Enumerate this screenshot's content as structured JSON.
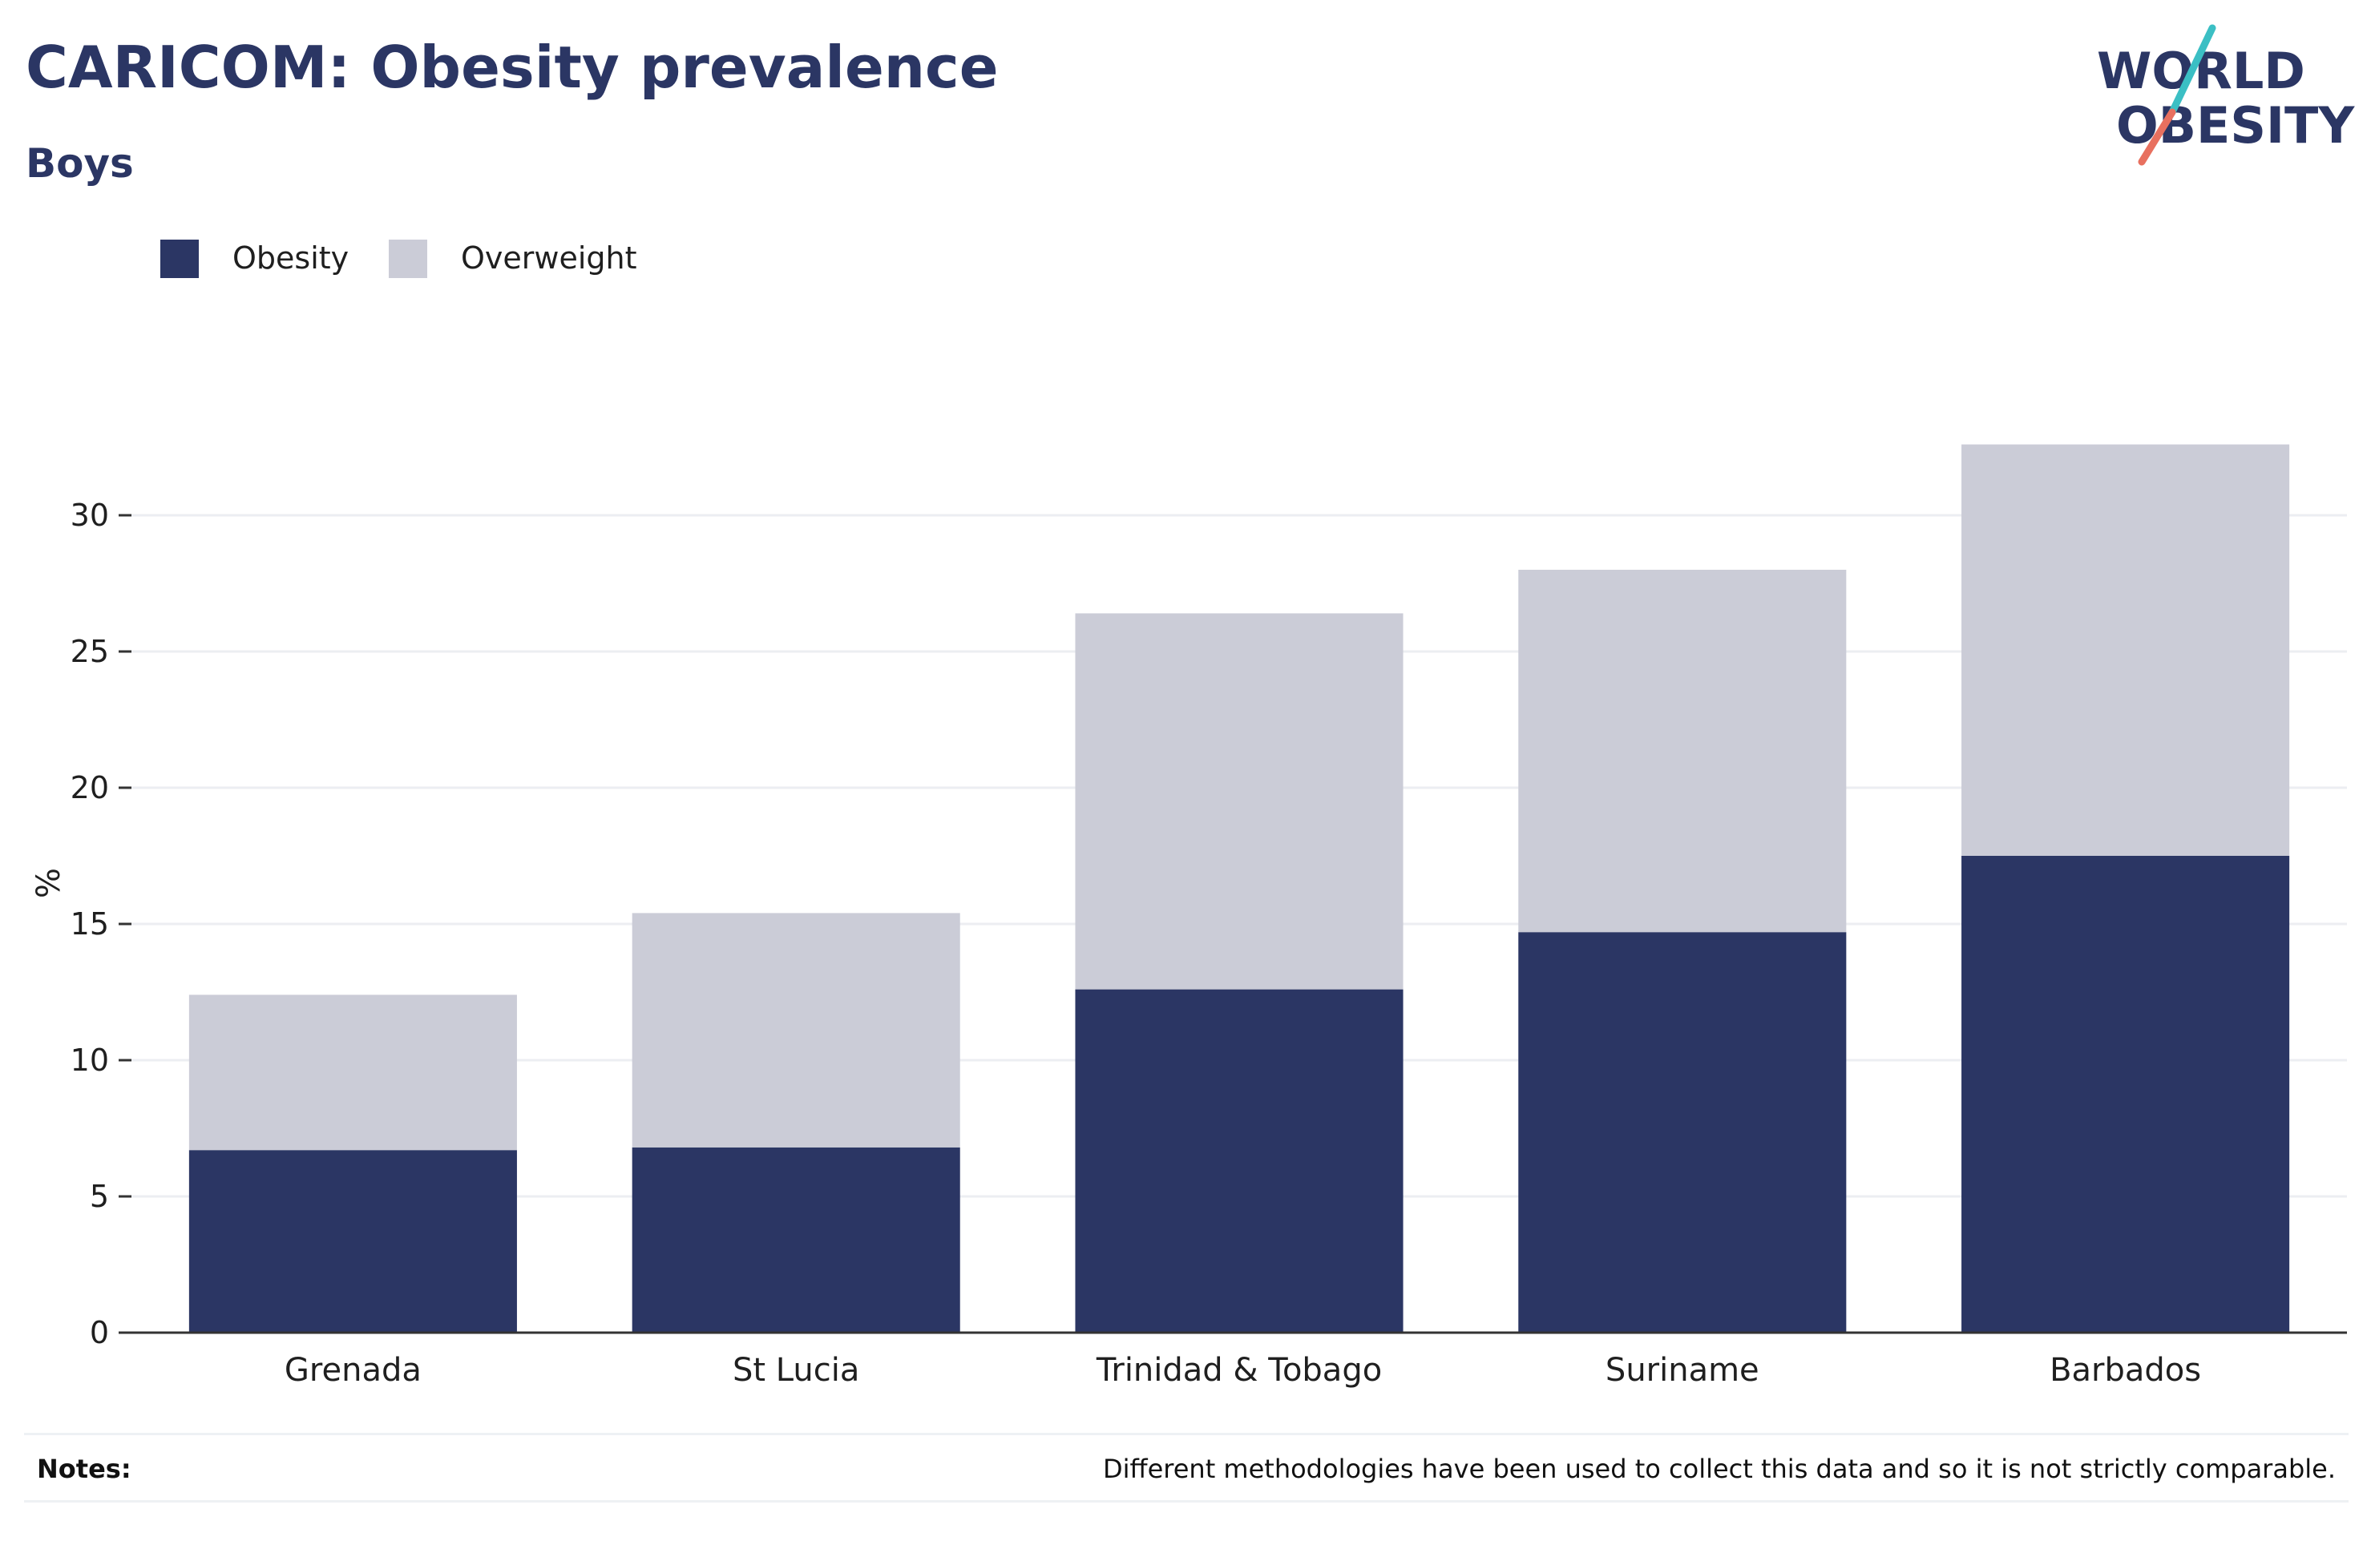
{
  "header": {
    "title": "CARICOM: Obesity prevalence",
    "subtitle": "Boys"
  },
  "logo": {
    "line1": "WORLD",
    "line2": "OBESITY",
    "text_color": "#2b3664",
    "slash_top_color": "#3bbfc4",
    "slash_bottom_color": "#e8705f"
  },
  "colors": {
    "obesity": "#2b3664",
    "overweight": "#cbccd7",
    "gridline": "#eceef2",
    "axis": "#333333"
  },
  "notes": {
    "label": "Notes:",
    "text": "Different methodologies have been used to collect this data and so it is not strictly comparable."
  },
  "chart_data": {
    "type": "bar",
    "stacked": true,
    "title": "CARICOM: Obesity prevalence",
    "subtitle": "Boys",
    "xlabel": "",
    "ylabel": "%",
    "ylim": [
      0,
      33
    ],
    "yticks": [
      0,
      5,
      10,
      15,
      20,
      25,
      30
    ],
    "grid": true,
    "legend_position": "top-left",
    "categories": [
      "Grenada",
      "St Lucia",
      "Trinidad & Tobago",
      "Suriname",
      "Barbados"
    ],
    "series": [
      {
        "name": "Obesity",
        "values": [
          6.7,
          6.8,
          12.6,
          14.7,
          17.5
        ]
      },
      {
        "name": "Overweight",
        "values": [
          5.7,
          8.6,
          13.8,
          13.3,
          15.1
        ]
      }
    ]
  }
}
